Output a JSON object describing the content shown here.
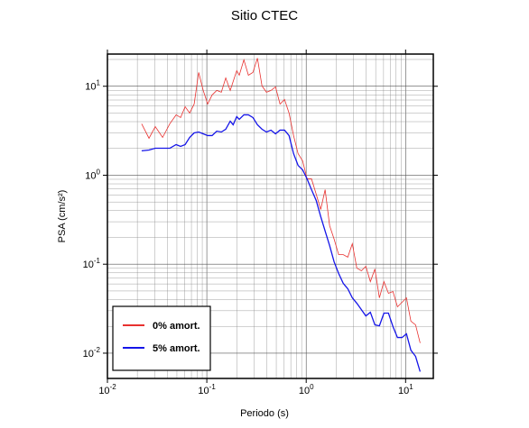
{
  "chart_data": {
    "type": "line",
    "title": "Sitio CTEC",
    "x_label": "Periodo (s)",
    "y_label": "PSA (cm/s²)",
    "x_log": true,
    "y_log": true,
    "grid": true,
    "minor_grid": true,
    "legend_position": "lower left",
    "xlim": [
      0.01,
      19
    ],
    "ylim": [
      0.0052,
      23
    ],
    "xticks": [
      {
        "value": 0.01,
        "label": "10",
        "exponent": "-2"
      },
      {
        "value": 0.1,
        "label": "10",
        "exponent": "-1"
      },
      {
        "value": 1,
        "label": "10",
        "exponent": "0"
      },
      {
        "value": 10,
        "label": "10",
        "exponent": "1"
      }
    ],
    "yticks": [
      {
        "value": 0.01,
        "label": "10",
        "exponent": "-2"
      },
      {
        "value": 0.1,
        "label": "10",
        "exponent": "-1"
      },
      {
        "value": 1,
        "label": "10",
        "exponent": "0"
      },
      {
        "value": 10,
        "label": "10",
        "exponent": "1"
      }
    ],
    "x": [
      0.0221,
      0.0262,
      0.0303,
      0.0359,
      0.0424,
      0.0491,
      0.0545,
      0.0605,
      0.0672,
      0.0746,
      0.0828,
      0.092,
      0.102,
      0.113,
      0.126,
      0.14,
      0.155,
      0.172,
      0.184,
      0.2,
      0.212,
      0.236,
      0.262,
      0.291,
      0.323,
      0.359,
      0.398,
      0.442,
      0.491,
      0.545,
      0.605,
      0.672,
      0.746,
      0.828,
      0.92,
      1.02,
      1.13,
      1.26,
      1.4,
      1.55,
      1.72,
      1.91,
      2.12,
      2.36,
      2.62,
      2.91,
      3.23,
      3.59,
      3.98,
      4.42,
      4.91,
      5.45,
      6.05,
      6.72,
      7.46,
      8.28,
      9.2,
      10.2,
      11.3,
      12.6,
      14.0
    ],
    "series": [
      {
        "name": "0% amort.",
        "color": "#e8312f",
        "width": 0.8,
        "values": [
          3.78,
          2.6,
          3.52,
          2.66,
          3.78,
          4.77,
          4.45,
          5.89,
          5.0,
          6.31,
          14.3,
          8.97,
          6.31,
          7.98,
          8.97,
          8.57,
          12.4,
          8.97,
          11.3,
          15.0,
          13.3,
          19.8,
          13.3,
          14.3,
          20.7,
          10.1,
          8.57,
          8.97,
          9.84,
          6.31,
          7.1,
          5.0,
          2.79,
          1.75,
          1.45,
          0.911,
          0.911,
          0.613,
          0.412,
          0.689,
          0.271,
          0.191,
          0.128,
          0.128,
          0.12,
          0.17,
          0.0904,
          0.0843,
          0.0948,
          0.0637,
          0.0883,
          0.0419,
          0.0637,
          0.0471,
          0.0493,
          0.0332,
          0.0373,
          0.0419,
          0.0229,
          0.0208,
          0.013
        ]
      },
      {
        "name": "5% amort.",
        "color": "#1515e8",
        "width": 1.3,
        "values": [
          1.88,
          1.92,
          2.01,
          2.01,
          2.01,
          2.21,
          2.11,
          2.21,
          2.66,
          2.99,
          3.06,
          2.92,
          2.79,
          2.79,
          3.13,
          3.06,
          3.29,
          4.05,
          3.69,
          4.56,
          4.25,
          4.77,
          4.77,
          4.45,
          3.69,
          3.29,
          3.06,
          3.21,
          2.92,
          3.21,
          3.21,
          2.79,
          1.75,
          1.29,
          1.15,
          0.911,
          0.689,
          0.52,
          0.342,
          0.236,
          0.162,
          0.106,
          0.0787,
          0.0608,
          0.0529,
          0.0419,
          0.0364,
          0.0309,
          0.0262,
          0.0288,
          0.0208,
          0.0203,
          0.0282,
          0.0282,
          0.0199,
          0.015,
          0.015,
          0.0165,
          0.0108,
          0.0092,
          0.0062
        ]
      }
    ]
  }
}
